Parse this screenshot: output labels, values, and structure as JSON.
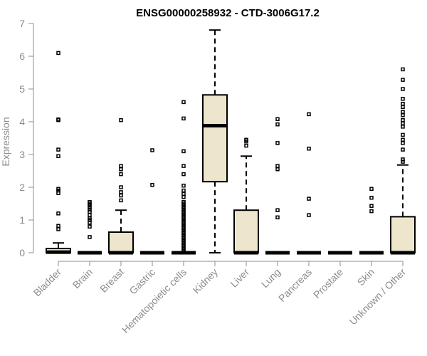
{
  "chart_data": {
    "type": "boxplot",
    "title": "ENSG00000258932 - CTD-3006G17.2",
    "xlabel": "",
    "ylabel": "Expression",
    "ylim": [
      0,
      7
    ],
    "yticks": [
      0,
      1,
      2,
      3,
      4,
      5,
      6,
      7
    ],
    "box_fill": "#ede6cd",
    "categories": [
      "Bladder",
      "Brain",
      "Breast",
      "Gastric",
      "Hematopoietic cells",
      "Kidney",
      "Liver",
      "Lung",
      "Pancreas",
      "Prostate",
      "Skin",
      "Unknown / Other"
    ],
    "boxes": [
      {
        "name": "Bladder",
        "min": 0,
        "q1": 0,
        "median": 0.02,
        "q3": 0.13,
        "max": 0.3,
        "outliers": [
          0.72,
          0.82,
          1.2,
          1.82,
          1.9,
          1.95,
          2.95,
          3.15,
          4.05,
          4.07,
          6.1
        ]
      },
      {
        "name": "Brain",
        "min": 0,
        "q1": 0,
        "median": 0,
        "q3": 0,
        "max": 0,
        "outliers": [
          0.48,
          0.8,
          0.92,
          1.0,
          1.05,
          1.15,
          1.25,
          1.32,
          1.38,
          1.45,
          1.5,
          1.55
        ]
      },
      {
        "name": "Breast",
        "min": 0,
        "q1": 0,
        "median": 0,
        "q3": 0.63,
        "max": 1.3,
        "outliers": [
          1.6,
          1.75,
          1.85,
          2.0,
          2.4,
          2.55,
          2.65,
          4.05
        ]
      },
      {
        "name": "Gastric",
        "min": 0,
        "q1": 0,
        "median": 0,
        "q3": 0,
        "max": 0,
        "outliers": [
          2.07,
          3.13
        ]
      },
      {
        "name": "Hematopoietic cells",
        "min": 0,
        "q1": 0,
        "median": 0,
        "q3": 0,
        "max": 0,
        "outliers": [
          0.05,
          0.1,
          0.15,
          0.2,
          0.25,
          0.3,
          0.35,
          0.4,
          0.45,
          0.5,
          0.55,
          0.6,
          0.65,
          0.7,
          0.75,
          0.8,
          0.85,
          0.9,
          0.95,
          1.0,
          1.05,
          1.1,
          1.15,
          1.2,
          1.25,
          1.3,
          1.35,
          1.4,
          1.45,
          1.5,
          1.55,
          1.7,
          1.8,
          1.9,
          2.05,
          2.4,
          2.65,
          3.1,
          4.1,
          4.6
        ]
      },
      {
        "name": "Kidney",
        "min": 0,
        "q1": 2.17,
        "median": 3.88,
        "q3": 4.82,
        "max": 6.8,
        "outliers": []
      },
      {
        "name": "Liver",
        "min": 0,
        "q1": 0,
        "median": 0,
        "q3": 1.3,
        "max": 2.95,
        "outliers": [
          3.27,
          3.4,
          3.45
        ]
      },
      {
        "name": "Lung",
        "min": 0,
        "q1": 0,
        "median": 0,
        "q3": 0,
        "max": 0,
        "outliers": [
          1.08,
          1.3,
          2.55,
          2.65,
          3.35,
          3.92,
          4.08
        ]
      },
      {
        "name": "Pancreas",
        "min": 0,
        "q1": 0,
        "median": 0,
        "q3": 0,
        "max": 0,
        "outliers": [
          1.15,
          1.65,
          3.18,
          4.23
        ]
      },
      {
        "name": "Prostate",
        "min": 0,
        "q1": 0,
        "median": 0,
        "q3": 0,
        "max": 0,
        "outliers": []
      },
      {
        "name": "Skin",
        "min": 0,
        "q1": 0,
        "median": 0,
        "q3": 0,
        "max": 0,
        "outliers": [
          1.27,
          1.43,
          1.68,
          1.95
        ]
      },
      {
        "name": "Unknown / Other",
        "min": 0,
        "q1": 0,
        "median": 0,
        "q3": 1.1,
        "max": 2.68,
        "outliers": [
          2.78,
          2.85,
          3.15,
          3.35,
          3.45,
          3.6,
          3.85,
          3.95,
          4.05,
          4.2,
          4.3,
          4.45,
          4.55,
          4.7,
          5.0,
          5.28,
          5.6
        ]
      }
    ]
  }
}
